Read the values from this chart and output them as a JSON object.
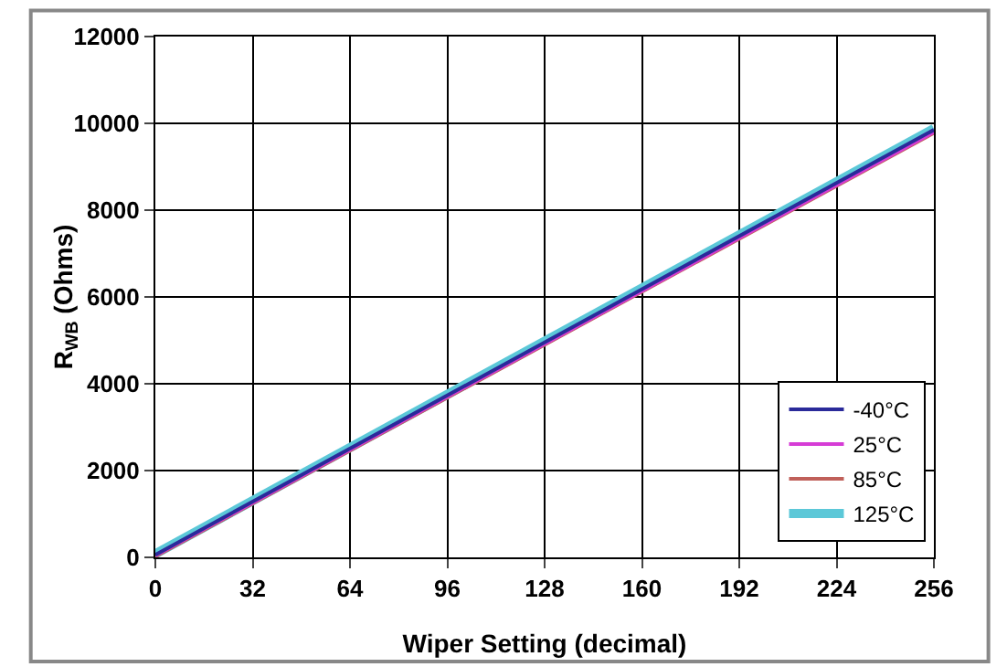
{
  "chart_data": {
    "type": "line",
    "xlabel": "Wiper Setting (decimal)",
    "ylabel": "R$_{WB}$ (Ohms)",
    "x": [
      0,
      256
    ],
    "series": [
      {
        "name": "-40°C",
        "color": "#2a2a9a",
        "values": [
          60,
          9850
        ]
      },
      {
        "name": "25°C",
        "color": "#d63cd6",
        "values": [
          40,
          9800
        ]
      },
      {
        "name": "85°C",
        "color": "#c0605a",
        "values": [
          20,
          9780
        ]
      },
      {
        "name": "125°C",
        "color": "#5cc8d8",
        "values": [
          80,
          9880
        ]
      }
    ],
    "xlim": [
      0,
      256
    ],
    "xticks": [
      0,
      32,
      64,
      96,
      128,
      160,
      192,
      224,
      256
    ],
    "ylim": [
      0,
      12000
    ],
    "yticks": [
      0,
      2000,
      4000,
      6000,
      8000,
      10000,
      12000
    ],
    "grid": true,
    "legend": "bottom right",
    "line_style": "solid"
  }
}
